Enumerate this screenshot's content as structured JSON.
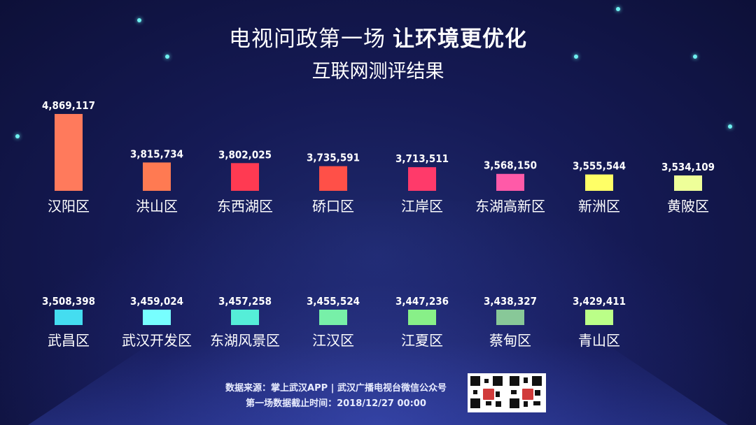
{
  "title_part1": "电视问政第一场",
  "title_part2": "让环境更优化",
  "subtitle": "互联网测评结果",
  "footer": {
    "line1": "数据来源：掌上武汉APP | 武汉广播电视台微信公众号",
    "line2": "第一场数据截止时间：2018/12/27 00:00"
  },
  "chart_data": {
    "type": "bar",
    "title": "",
    "xlabel": "",
    "ylabel": "",
    "ylim": [
      3200000,
      4900000
    ],
    "grid": false,
    "rows": [
      {
        "categories": [
          "汉阳区",
          "洪山区",
          "东西湖区",
          "硚口区",
          "江岸区",
          "东湖高新区",
          "新洲区",
          "黄陂区"
        ],
        "values": [
          4869117,
          3815734,
          3802025,
          3735591,
          3713511,
          3568150,
          3555544,
          3534109
        ],
        "labels": [
          "4,869,117",
          "3,815,734",
          "3,802,025",
          "3,735,591",
          "3,713,511",
          "3,568,150",
          "3,555,544",
          "3,534,109"
        ],
        "colors": [
          "#ff7a5c",
          "#ff7a52",
          "#ff3a52",
          "#ff5048",
          "#ff3a6a",
          "#ff5aa8",
          "#ffff66",
          "#eeff99"
        ]
      },
      {
        "categories": [
          "武昌区",
          "武汉开发区",
          "东湖风景区",
          "江汉区",
          "江夏区",
          "蔡甸区",
          "青山区"
        ],
        "values": [
          3508398,
          3459024,
          3457258,
          3455524,
          3447236,
          3438327,
          3429411
        ],
        "labels": [
          "3,508,398",
          "3,459,024",
          "3,457,258",
          "3,455,524",
          "3,447,236",
          "3,438,327",
          "3,429,411"
        ],
        "colors": [
          "#44ddf0",
          "#77ffff",
          "#55eed8",
          "#77f0a8",
          "#88f088",
          "#88c898",
          "#bbff88"
        ]
      }
    ]
  }
}
